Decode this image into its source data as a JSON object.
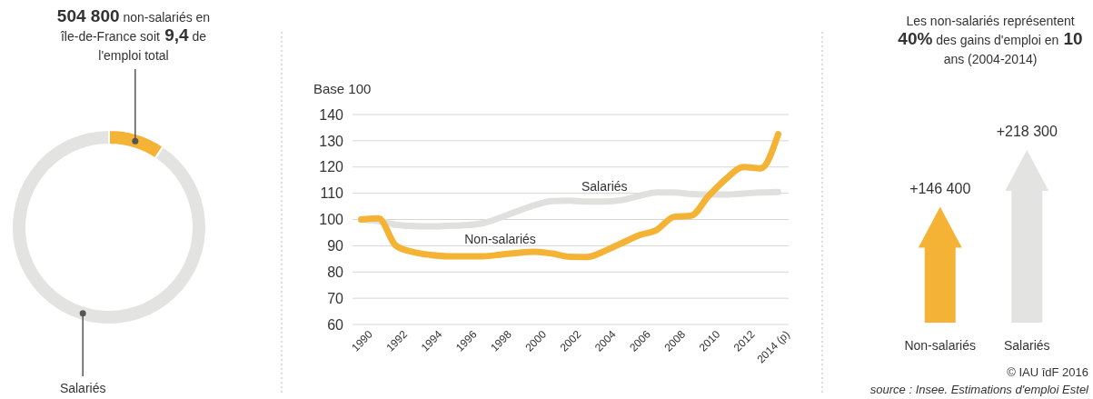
{
  "chart_data": [
    {
      "type": "donut",
      "categories": [
        "504 800 non-salariés en île-de-France soit 9,4 de l'emploi total",
        "Salariés"
      ],
      "values": [
        9.4,
        90.6
      ],
      "colors": [
        "#f5b335",
        "#e3e3e1"
      ]
    },
    {
      "type": "line",
      "ylabel": "Base 100",
      "x": [
        1990,
        1991,
        1992,
        1993,
        1994,
        1995,
        1996,
        1997,
        1998,
        1999,
        2000,
        2001,
        2002,
        2003,
        2004,
        2005,
        2006,
        2007,
        2008,
        2009,
        2010,
        2011,
        2012,
        2013,
        2014
      ],
      "series": [
        {
          "name": "Salariés",
          "color": "#e0e0de",
          "values": [
            100,
            99.4,
            98,
            97.5,
            97.4,
            97.6,
            97.8,
            98.6,
            100.7,
            103.2,
            105.5,
            107,
            107.2,
            106.8,
            106.8,
            107.4,
            109,
            110.3,
            110.3,
            109.7,
            109.5,
            109.5,
            109.9,
            110.3,
            110.5
          ]
        },
        {
          "name": "Non-salariés",
          "color": "#f5b335",
          "values": [
            100,
            100.4,
            90,
            87.6,
            86.5,
            86,
            86,
            86,
            86.6,
            87.3,
            87.7,
            87,
            85.8,
            85.7,
            88,
            91,
            94,
            96,
            101,
            101.5,
            109,
            115.5,
            120,
            119.5,
            132.5
          ]
        }
      ],
      "xlim": [
        1989.5,
        2014.6
      ],
      "xticks": [
        1990,
        1992,
        1994,
        1996,
        1998,
        2000,
        2002,
        2004,
        2006,
        2008,
        2010,
        2012,
        {
          "value": 2014,
          "label": "2014 (p)"
        }
      ],
      "ylim": [
        60,
        140
      ],
      "yticks": [
        60,
        70,
        80,
        90,
        100,
        110,
        120,
        130,
        140
      ],
      "grid": "y"
    },
    {
      "type": "bar",
      "title": "Les non-salariés représentent 40% des gains d'emploi en 10 ans (2004-2014)",
      "categories": [
        "Non-salariés",
        "Salariés"
      ],
      "values": [
        146400,
        218300
      ],
      "colors": [
        "#f5b335",
        "#e3e3e1"
      ],
      "value_labels": [
        "+146 400",
        "+218 300"
      ],
      "annotations": [
        "© IAU îdF 2016",
        "source : Insee. Estimations d'emploi Estel"
      ]
    }
  ]
}
